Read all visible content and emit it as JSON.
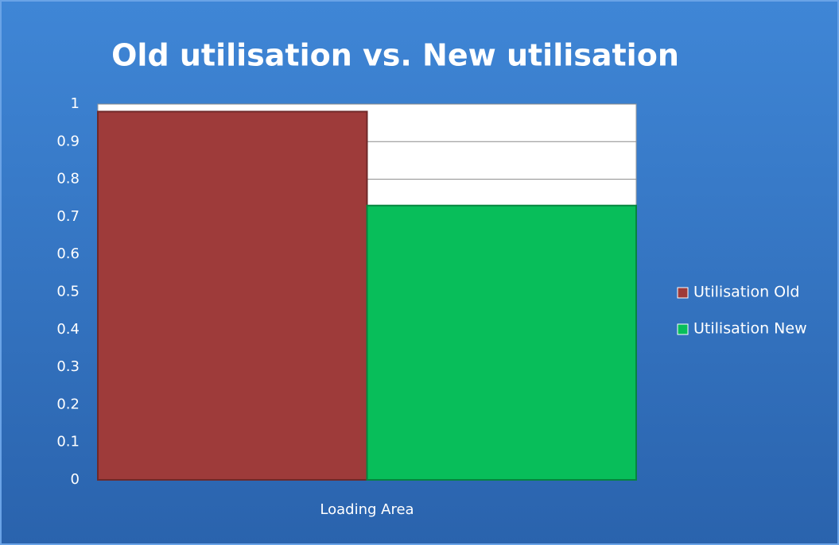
{
  "chart_data": {
    "type": "bar",
    "title": "Old utilisation vs. New utilisation",
    "categories": [
      "Loading Area"
    ],
    "series": [
      {
        "name": "Utilisation Old",
        "color": "#9e3b3a",
        "values": [
          0.98
        ]
      },
      {
        "name": "Utilisation New",
        "color": "#08be5a",
        "values": [
          0.73
        ]
      }
    ],
    "ylim": [
      0,
      1
    ],
    "yticks": [
      0,
      0.1,
      0.2,
      0.3,
      0.4,
      0.5,
      0.6,
      0.7,
      0.8,
      0.9,
      1
    ],
    "grid": true,
    "legend": "right"
  }
}
